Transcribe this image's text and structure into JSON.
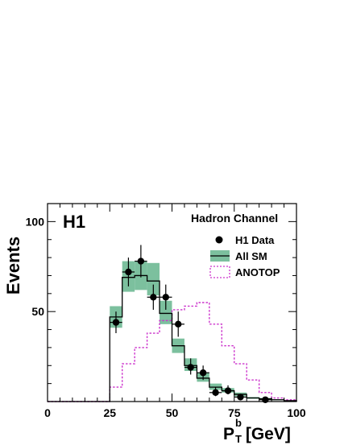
{
  "chart_data": {
    "type": "histogram",
    "experiment_label": "H1",
    "channel_label": "Hadron Channel",
    "ylabel": "Events",
    "xlabel": {
      "main": "P",
      "sup": "b",
      "sub": "T",
      "unit": " [GeV]"
    },
    "xlim": [
      0,
      100
    ],
    "ylim": [
      0,
      110
    ],
    "x_ticks": [
      0,
      25,
      50,
      75,
      100
    ],
    "x_tick_labels": [
      "0",
      "25",
      "50",
      "75",
      "100"
    ],
    "y_ticks": [
      50,
      100
    ],
    "y_tick_labels": [
      "50",
      "100"
    ],
    "bin_edges": [
      0,
      25,
      30,
      35,
      40,
      45,
      50,
      55,
      60,
      65,
      70,
      75,
      80,
      85,
      90,
      95,
      100
    ],
    "legend": {
      "data": "H1 Data",
      "sm": "All SM",
      "anotop": "ANOTOP"
    },
    "colors": {
      "sm_band": "#7cc09e",
      "sm_line": "#000000",
      "anotop": "#cc33cc",
      "data": "#000000"
    },
    "series": [
      {
        "name": "All SM",
        "values": [
          0,
          47,
          69,
          70,
          67,
          49,
          31,
          20,
          13,
          8,
          6,
          4,
          2,
          1.5,
          1,
          0.5
        ],
        "err_low": [
          0,
          41,
          61,
          62,
          59,
          43,
          27,
          17,
          11,
          6.5,
          5,
          3,
          1.5,
          1,
          0.7,
          0.3
        ],
        "err_high": [
          0,
          53,
          78,
          78,
          77,
          56,
          35,
          24,
          16,
          10,
          7.5,
          5,
          2.5,
          2,
          1.3,
          0.7
        ]
      },
      {
        "name": "ANOTOP",
        "values": [
          0,
          8,
          21,
          30,
          38,
          45,
          51,
          53,
          55,
          43,
          31,
          21,
          12,
          5,
          2,
          1
        ]
      },
      {
        "name": "H1 Data",
        "points": [
          {
            "x": 27.5,
            "y": 44,
            "yerr_low": 6,
            "yerr_high": 6
          },
          {
            "x": 32.5,
            "y": 72,
            "yerr_low": 8,
            "yerr_high": 8
          },
          {
            "x": 37.5,
            "y": 78,
            "yerr_low": 9,
            "yerr_high": 9
          },
          {
            "x": 42.5,
            "y": 58,
            "yerr_low": 7,
            "yerr_high": 7
          },
          {
            "x": 47.5,
            "y": 58,
            "yerr_low": 7,
            "yerr_high": 7
          },
          {
            "x": 52.5,
            "y": 43,
            "yerr_low": 7,
            "yerr_high": 7
          },
          {
            "x": 57.5,
            "y": 19,
            "yerr_low": 4,
            "yerr_high": 5
          },
          {
            "x": 62.5,
            "y": 16,
            "yerr_low": 4,
            "yerr_high": 4
          },
          {
            "x": 67.5,
            "y": 5,
            "yerr_low": 2,
            "yerr_high": 3
          },
          {
            "x": 72.5,
            "y": 6,
            "yerr_low": 2,
            "yerr_high": 3
          },
          {
            "x": 77.5,
            "y": 2.5,
            "yerr_low": 1.5,
            "yerr_high": 1.5
          },
          {
            "x": 87.5,
            "y": 1,
            "yerr_low": 0.8,
            "yerr_high": 1
          }
        ]
      }
    ]
  }
}
